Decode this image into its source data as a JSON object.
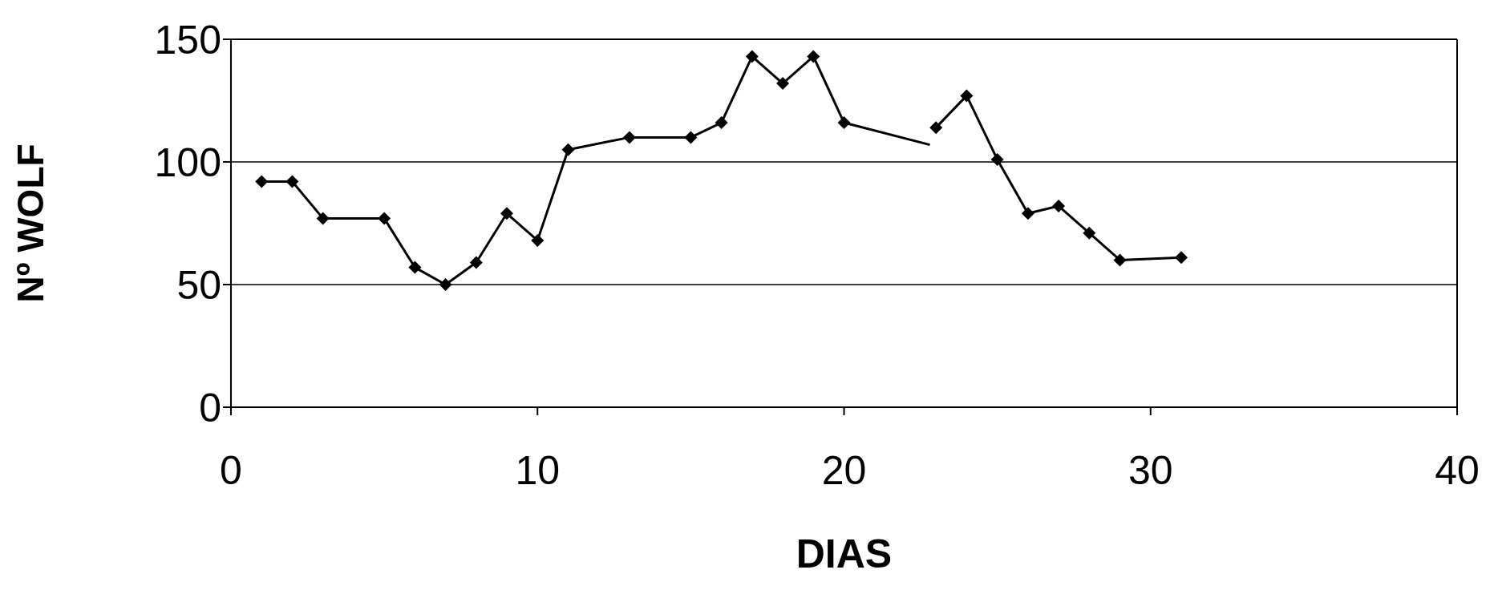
{
  "chart_data": {
    "type": "line",
    "xlabel": "DIAS",
    "ylabel": "Nº WOLF",
    "xlim": [
      0,
      40
    ],
    "xticks": [
      0,
      10,
      20,
      30,
      40
    ],
    "ylim": [
      0,
      150
    ],
    "yticks": [
      0,
      50,
      100,
      150
    ],
    "grid": "y",
    "marker": "diamond",
    "line_style": "solid",
    "series": [
      {
        "color": "#000000",
        "x": [
          1,
          2,
          3,
          5,
          6,
          7,
          8,
          9,
          10,
          11,
          13,
          15,
          16,
          17,
          18,
          19,
          20
        ],
        "values": [
          92,
          92,
          77,
          77,
          57,
          50,
          59,
          79,
          68,
          105,
          110,
          110,
          116,
          143,
          132,
          143,
          116
        ]
      },
      {
        "color": "#000000",
        "marker": "none",
        "x": [
          20,
          22.8
        ],
        "values": [
          116,
          107
        ]
      },
      {
        "color": "#000000",
        "x": [
          23,
          24,
          25,
          26,
          27,
          28,
          29,
          31
        ],
        "values": [
          114,
          127,
          101,
          79,
          82,
          71,
          60,
          61
        ]
      }
    ]
  }
}
